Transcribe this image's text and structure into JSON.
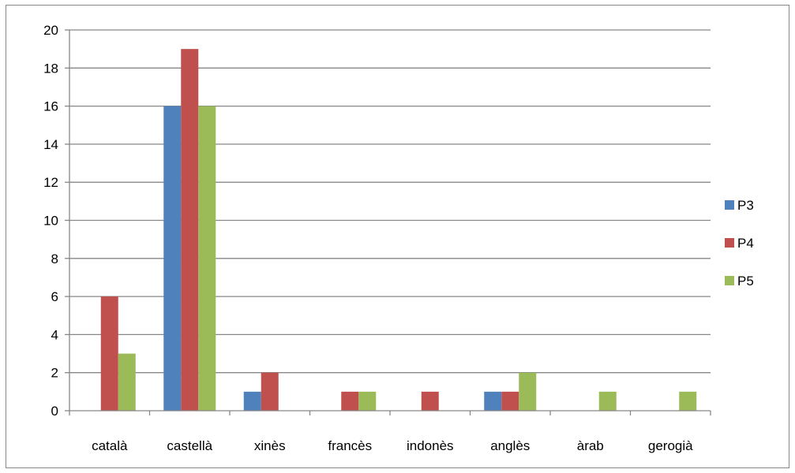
{
  "chart_data": {
    "type": "bar",
    "categories": [
      "català",
      "castellà",
      "xinès",
      "francès",
      "indonès",
      "anglès",
      "àrab",
      "gerogià"
    ],
    "series": [
      {
        "name": "P3",
        "color": "#4f81bd",
        "values": [
          0,
          16,
          1,
          0,
          0,
          1,
          0,
          0
        ]
      },
      {
        "name": "P4",
        "color": "#c0504d",
        "values": [
          6,
          19,
          2,
          1,
          1,
          1,
          0,
          0
        ]
      },
      {
        "name": "P5",
        "color": "#9bbb59",
        "values": [
          3,
          16,
          0,
          1,
          0,
          2,
          1,
          1
        ]
      }
    ],
    "ylim": [
      0,
      20
    ],
    "yticks": [
      0,
      2,
      4,
      6,
      8,
      10,
      12,
      14,
      16,
      18,
      20
    ],
    "grid": true,
    "legend_position": "right",
    "title": "",
    "xlabel": "",
    "ylabel": ""
  }
}
